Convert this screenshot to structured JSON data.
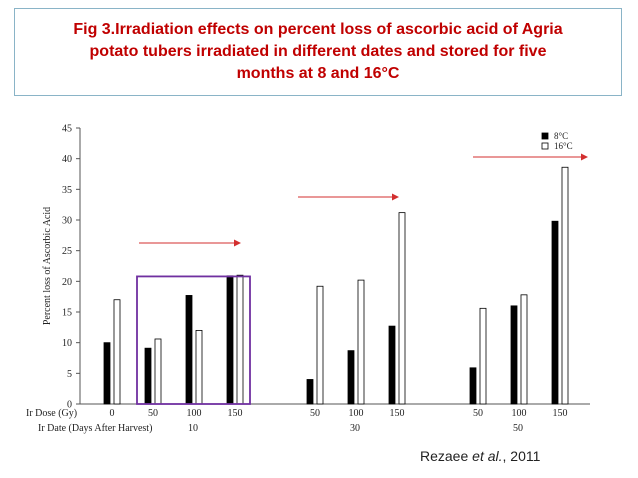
{
  "slide": {
    "title_lines": [
      "Fig 3.Irradiation effects on percent  loss of ascorbic acid of Agria",
      "potato tubers irradiated in different dates and stored for five",
      "months at 8 and 16°C"
    ],
    "citation_author": "Rezaee ",
    "citation_etal": "et al.",
    "citation_year": ", 2011"
  },
  "colors": {
    "title": "#c00000",
    "arrow": "#d32f2f",
    "highlight_box": "#7030a0",
    "series_8c": "#000000",
    "series_16c": "#ffffff"
  },
  "chart_data": {
    "type": "bar",
    "ylabel": "Percent loss of Ascorbic Acid",
    "ylim": [
      0,
      45
    ],
    "yticks": [
      0,
      5,
      10,
      15,
      20,
      25,
      30,
      35,
      40,
      45
    ],
    "grid": false,
    "legend_position": "top-right",
    "x_row_labels": [
      "Ir Dose (Gy)",
      "Ir  Date (Days After Harvest)"
    ],
    "categories": [
      {
        "dose": "0",
        "date": ""
      },
      {
        "dose": "50",
        "date": ""
      },
      {
        "dose": "100",
        "date": "10"
      },
      {
        "dose": "150",
        "date": ""
      },
      {
        "dose": "50",
        "date": ""
      },
      {
        "dose": "100",
        "date": "30"
      },
      {
        "dose": "150",
        "date": ""
      },
      {
        "dose": "50",
        "date": ""
      },
      {
        "dose": "100",
        "date": "50"
      },
      {
        "dose": "150",
        "date": ""
      }
    ],
    "series": [
      {
        "name": "8°C",
        "values": [
          10,
          9.1,
          17.7,
          20.9,
          4,
          8.7,
          12.7,
          5.9,
          16,
          29.8
        ]
      },
      {
        "name": "16°C",
        "values": [
          17,
          10.6,
          12,
          21,
          19.2,
          20.2,
          31.2,
          15.6,
          17.8,
          38.6
        ]
      }
    ]
  }
}
